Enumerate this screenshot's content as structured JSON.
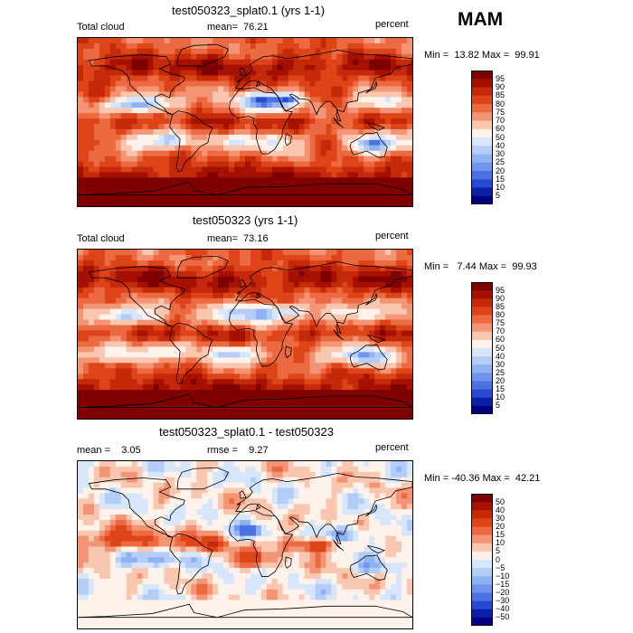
{
  "season": "MAM",
  "panels": [
    {
      "title": "test050323_splat0.1 (yrs 1-1)",
      "left_label": "Total cloud",
      "center_label": "mean=  76.21",
      "units": "percent",
      "min_max": "Min =  13.82 Max =  99.91"
    },
    {
      "title": "test050323 (yrs 1-1)",
      "left_label": "Total cloud",
      "center_label": "mean=  73.16",
      "units": "percent",
      "min_max": "Min =   7.44 Max =  99.93"
    },
    {
      "title": "test050323_splat0.1 - test050323",
      "left_label": "mean =    3.05",
      "center_label": "rmse =    9.27",
      "units": "percent",
      "min_max": "Min = -40.36 Max =  42.21"
    }
  ],
  "chart_data": [
    {
      "type": "heatmap",
      "title": "test050323_splat0.1 (yrs 1-1)",
      "variable": "Total cloud",
      "units": "percent",
      "mean": 76.21,
      "min": 13.82,
      "max": 99.91,
      "colorbar_levels": [
        "95",
        "90",
        "85",
        "80",
        "75",
        "70",
        "60",
        "50",
        "40",
        "30",
        "25",
        "20",
        "15",
        "10",
        "5"
      ],
      "colorbar_colors": [
        "#7e0000",
        "#a51000",
        "#c42a0a",
        "#dd4418",
        "#ec6a42",
        "#f39575",
        "#f9c6b0",
        "#fff2ea",
        "#d6e6fb",
        "#b3cdf7",
        "#8fb2f2",
        "#6f95ec",
        "#4b72e2",
        "#264bd2",
        "#0a1ea8",
        "#000080"
      ]
    },
    {
      "type": "heatmap",
      "title": "test050323 (yrs 1-1)",
      "variable": "Total cloud",
      "units": "percent",
      "mean": 73.16,
      "min": 7.44,
      "max": 99.93,
      "colorbar_levels": [
        "95",
        "90",
        "85",
        "80",
        "75",
        "70",
        "60",
        "50",
        "40",
        "30",
        "25",
        "20",
        "15",
        "10",
        "5"
      ],
      "colorbar_colors": [
        "#7e0000",
        "#a51000",
        "#c42a0a",
        "#dd4418",
        "#ec6a42",
        "#f39575",
        "#f9c6b0",
        "#fff2ea",
        "#d6e6fb",
        "#b3cdf7",
        "#8fb2f2",
        "#6f95ec",
        "#4b72e2",
        "#264bd2",
        "#0a1ea8",
        "#000080"
      ]
    },
    {
      "type": "heatmap",
      "title": "test050323_splat0.1 - test050323",
      "units": "percent",
      "mean": 3.05,
      "rmse": 9.27,
      "min": -40.36,
      "max": 42.21,
      "colorbar_levels": [
        "50",
        "40",
        "30",
        "20",
        "15",
        "10",
        "5",
        "0",
        "−5",
        "−10",
        "−15",
        "−20",
        "−30",
        "−40",
        "−50"
      ],
      "colorbar_colors": [
        "#7e0000",
        "#a51000",
        "#c42a0a",
        "#dd4418",
        "#ec6a42",
        "#f39575",
        "#f9c6b0",
        "#fff2ea",
        "#d6e6fb",
        "#b3cdf7",
        "#8fb2f2",
        "#6f95ec",
        "#4b72e2",
        "#264bd2",
        "#0a1ea8",
        "#000080"
      ]
    }
  ]
}
